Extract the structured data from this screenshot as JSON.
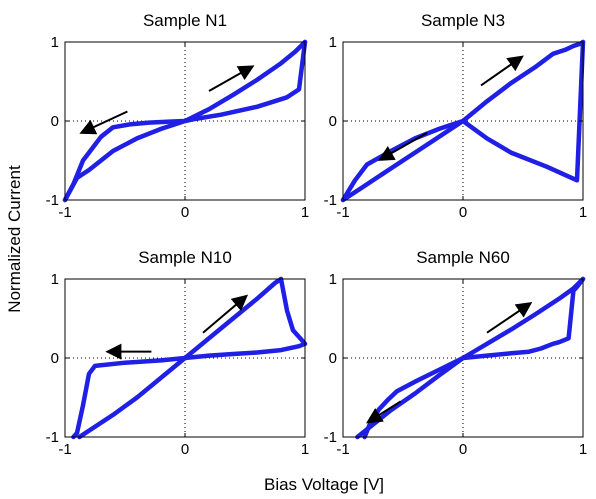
{
  "figure": {
    "xlabel": "Bias Voltage [V]",
    "ylabel": "Normalized Current",
    "colors": {
      "curve": "#1f1fe6",
      "arrow": "#000000",
      "guide": "#000000"
    }
  },
  "chart_data": [
    {
      "type": "line",
      "title": "Sample N1",
      "xlim": [
        -1,
        1
      ],
      "ylim": [
        -1,
        1
      ],
      "xticks": [
        "-1",
        "0",
        "1"
      ],
      "yticks": [
        "-1",
        "0",
        "1"
      ],
      "grid": false,
      "series": [
        {
          "x": [
            -1.0,
            -0.93,
            -0.85,
            -0.8,
            -0.7,
            -0.6,
            -0.45,
            -0.3,
            -0.15,
            0.0,
            0.2,
            0.4,
            0.6,
            0.8,
            0.92,
            0.98,
            1.0
          ],
          "y": [
            -1.0,
            -0.8,
            -0.5,
            -0.4,
            -0.2,
            -0.08,
            -0.04,
            -0.02,
            -0.01,
            0.0,
            0.15,
            0.33,
            0.52,
            0.73,
            0.88,
            0.97,
            1.0
          ]
        },
        {
          "x": [
            1.0,
            0.95,
            0.85,
            0.6,
            0.3,
            0.1,
            0.0,
            -0.2,
            -0.4,
            -0.6,
            -0.8,
            -0.9,
            -1.0
          ],
          "y": [
            1.0,
            0.4,
            0.3,
            0.18,
            0.08,
            0.03,
            0.0,
            -0.1,
            -0.22,
            -0.38,
            -0.62,
            -0.72,
            -1.0
          ]
        }
      ],
      "arrows": [
        {
          "from": [
            0.2,
            0.38
          ],
          "to": [
            0.55,
            0.68
          ]
        },
        {
          "from": [
            -0.48,
            0.12
          ],
          "to": [
            -0.85,
            -0.14
          ]
        }
      ]
    },
    {
      "type": "line",
      "title": "Sample N3",
      "xlim": [
        -1,
        1
      ],
      "ylim": [
        -1,
        1
      ],
      "xticks": [
        "-1",
        "0",
        "1"
      ],
      "yticks": [
        "-1",
        "0",
        "1"
      ],
      "grid": false,
      "series": [
        {
          "x": [
            -1.0,
            -0.9,
            -0.8,
            -0.6,
            -0.4,
            -0.2,
            0.0,
            0.2,
            0.4,
            0.6,
            0.75,
            0.85,
            0.92,
            0.98,
            1.0
          ],
          "y": [
            -1.0,
            -0.75,
            -0.55,
            -0.38,
            -0.22,
            -0.1,
            0.0,
            0.25,
            0.48,
            0.68,
            0.85,
            0.9,
            0.95,
            0.98,
            1.0
          ]
        },
        {
          "x": [
            1.0,
            0.95,
            0.7,
            0.4,
            0.2,
            0.0,
            -0.3,
            -0.6,
            -0.85,
            -1.0
          ],
          "y": [
            1.0,
            -0.75,
            -0.58,
            -0.4,
            -0.22,
            0.0,
            -0.3,
            -0.6,
            -0.85,
            -1.0
          ]
        }
      ],
      "arrows": [
        {
          "from": [
            0.15,
            0.45
          ],
          "to": [
            0.48,
            0.8
          ]
        },
        {
          "from": [
            -0.3,
            -0.15
          ],
          "to": [
            -0.68,
            -0.48
          ]
        }
      ]
    },
    {
      "type": "line",
      "title": "Sample N10",
      "xlim": [
        -1,
        1
      ],
      "ylim": [
        -1,
        1
      ],
      "xticks": [
        "-1",
        "0",
        "1"
      ],
      "yticks": [
        "-1",
        "0",
        "1"
      ],
      "grid": false,
      "series": [
        {
          "x": [
            -0.88,
            -0.6,
            -0.4,
            -0.2,
            0.0,
            0.2,
            0.4,
            0.6,
            0.75,
            0.8
          ],
          "y": [
            -1.0,
            -0.72,
            -0.5,
            -0.25,
            0.0,
            0.25,
            0.5,
            0.75,
            0.95,
            1.0
          ]
        },
        {
          "x": [
            0.8,
            0.85,
            0.9,
            0.96,
            1.0,
            0.95,
            0.8,
            0.6,
            0.4,
            0.2,
            0.0,
            -0.2,
            -0.5,
            -0.75,
            -0.8,
            -0.85,
            -0.9,
            -0.93
          ],
          "y": [
            1.0,
            0.6,
            0.35,
            0.25,
            0.18,
            0.15,
            0.1,
            0.07,
            0.05,
            0.03,
            0.0,
            -0.03,
            -0.06,
            -0.1,
            -0.2,
            -0.6,
            -0.95,
            -1.0
          ]
        }
      ],
      "arrows": [
        {
          "from": [
            0.15,
            0.32
          ],
          "to": [
            0.5,
            0.77
          ]
        },
        {
          "from": [
            -0.28,
            0.08
          ],
          "to": [
            -0.63,
            0.08
          ]
        }
      ]
    },
    {
      "type": "line",
      "title": "Sample N60",
      "xlim": [
        -1,
        1
      ],
      "ylim": [
        -1,
        1
      ],
      "xticks": [
        "-1",
        "0",
        "1"
      ],
      "yticks": [
        "-1",
        "0",
        "1"
      ],
      "grid": false,
      "series": [
        {
          "x": [
            -0.88,
            -0.6,
            -0.4,
            -0.2,
            0.0,
            0.2,
            0.4,
            0.6,
            0.8,
            0.92,
            1.0
          ],
          "y": [
            -1.0,
            -0.66,
            -0.45,
            -0.22,
            0.0,
            0.18,
            0.36,
            0.55,
            0.75,
            0.88,
            1.0
          ]
        },
        {
          "x": [
            1.0,
            0.95,
            0.92,
            0.88,
            0.8,
            0.75,
            0.65,
            0.55,
            0.4,
            0.2,
            0.0,
            -0.2,
            -0.4,
            -0.55,
            -0.62,
            -0.7,
            -0.78,
            -0.82
          ],
          "y": [
            1.0,
            0.9,
            0.85,
            0.25,
            0.2,
            0.18,
            0.12,
            0.08,
            0.06,
            0.03,
            0.0,
            -0.15,
            -0.3,
            -0.42,
            -0.52,
            -0.65,
            -0.85,
            -1.0
          ]
        }
      ],
      "arrows": [
        {
          "from": [
            0.2,
            0.32
          ],
          "to": [
            0.55,
            0.68
          ]
        },
        {
          "from": [
            -0.52,
            -0.55
          ],
          "to": [
            -0.78,
            -0.8
          ]
        }
      ]
    }
  ]
}
